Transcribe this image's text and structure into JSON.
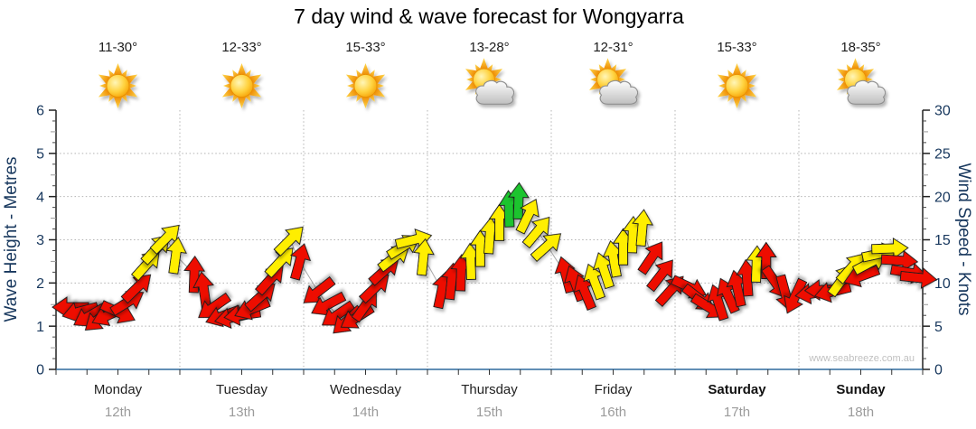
{
  "page": {
    "title": "7 day wind & wave forecast for Wongyarra"
  },
  "chart_data": {
    "type": "scatter",
    "title": "7 day wind & wave forecast for Wongyarra",
    "watermark": "www.seabreeze.com.au",
    "left_axis": {
      "label": "Wave Height - Metres",
      "min": 0,
      "max": 6,
      "major_ticks": [
        0,
        1,
        2,
        3,
        4,
        5,
        6
      ],
      "minor_step": 0.25
    },
    "right_axis": {
      "label": "Wind Speed - Knots",
      "min": 0,
      "max": 30,
      "major_ticks": [
        0,
        5,
        10,
        15,
        20,
        25,
        30
      ],
      "minor_step": 1.25
    },
    "x_axis": {
      "minor_ticks_per_day": 4,
      "grid": "day-boundaries"
    },
    "legend_note": "arrow color indicates wind strength; arrow rotation indicates wind direction",
    "colors": {
      "red": "#ee1100",
      "yellow": "#ffee00",
      "green": "#1dc42e",
      "outline": "#1a1a1a",
      "grid": "#b3b3b3",
      "axis": "#222222",
      "baseline": "#2f6a9e",
      "tick_label": "#17375d",
      "trace": "#a9a9a9"
    },
    "days": [
      {
        "name": "Monday",
        "date": "12th",
        "temps": "11-30°",
        "icon": "sunny",
        "weekend": false,
        "wind_knots": [
          7.2,
          6.7,
          6.2,
          5.9,
          6.3,
          6.6,
          7.8,
          9.5,
          12.2,
          14.0,
          15.2,
          13.2
        ],
        "wind_dir_deg": [
          270,
          255,
          240,
          230,
          245,
          115,
          58,
          46,
          42,
          43,
          45,
          8
        ],
        "wind_colors": [
          "red",
          "red",
          "red",
          "red",
          "red",
          "red",
          "red",
          "red",
          "yellow",
          "yellow",
          "yellow",
          "yellow"
        ]
      },
      {
        "name": "Tuesday",
        "date": "13th",
        "temps": "12-33°",
        "icon": "sunny",
        "weekend": false,
        "wind_knots": [
          11.0,
          9.2,
          7.2,
          6.2,
          6.0,
          6.3,
          7.0,
          8.5,
          10.5,
          12.5,
          15.0,
          12.5
        ],
        "wind_dir_deg": [
          2,
          352,
          235,
          250,
          258,
          262,
          248,
          48,
          42,
          43,
          45,
          15
        ],
        "wind_colors": [
          "red",
          "red",
          "red",
          "red",
          "red",
          "red",
          "red",
          "red",
          "red",
          "yellow",
          "yellow",
          "red"
        ]
      },
      {
        "name": "Wednesday",
        "date": "14th",
        "temps": "15-33°",
        "icon": "sunny",
        "weekend": false,
        "wind_knots": [
          9.0,
          7.5,
          6.3,
          5.6,
          6.0,
          7.5,
          9.5,
          11.5,
          13.0,
          14.3,
          15.0,
          13.0
        ],
        "wind_dir_deg": [
          232,
          242,
          236,
          228,
          238,
          35,
          46,
          48,
          52,
          58,
          76,
          6
        ],
        "wind_colors": [
          "red",
          "red",
          "red",
          "red",
          "red",
          "red",
          "red",
          "red",
          "yellow",
          "yellow",
          "yellow",
          "yellow"
        ]
      },
      {
        "name": "Thursday",
        "date": "15th",
        "temps": "13-28°",
        "icon": "partly",
        "weekend": false,
        "wind_knots": [
          9.2,
          10.2,
          11.2,
          12.5,
          14.0,
          15.5,
          17.0,
          18.6,
          19.5,
          17.8,
          16.0,
          14.3
        ],
        "wind_dir_deg": [
          12,
          6,
          2,
          358,
          0,
          4,
          0,
          358,
          2,
          26,
          40,
          48
        ],
        "wind_colors": [
          "red",
          "red",
          "red",
          "yellow",
          "yellow",
          "yellow",
          "yellow",
          "green",
          "green",
          "yellow",
          "yellow",
          "yellow"
        ]
      },
      {
        "name": "Friday",
        "date": "16th",
        "temps": "12-31°",
        "icon": "partly",
        "weekend": false,
        "wind_knots": [
          11.0,
          10.0,
          9.0,
          10.2,
          11.5,
          12.8,
          14.2,
          15.6,
          16.4,
          13.0,
          11.0,
          9.2
        ],
        "wind_dir_deg": [
          345,
          340,
          338,
          340,
          342,
          350,
          0,
          2,
          5,
          34,
          38,
          42
        ],
        "wind_colors": [
          "red",
          "red",
          "red",
          "yellow",
          "yellow",
          "yellow",
          "yellow",
          "yellow",
          "yellow",
          "red",
          "red",
          "red"
        ]
      },
      {
        "name": "Saturday",
        "date": "17th",
        "temps": "15-33°",
        "icon": "sunny",
        "weekend": true,
        "wind_knots": [
          9.5,
          8.2,
          7.2,
          7.8,
          8.6,
          9.4,
          10.6,
          12.2,
          12.6,
          10.0,
          8.8,
          8.4
        ],
        "wind_dir_deg": [
          115,
          128,
          122,
          342,
          336,
          348,
          356,
          2,
          0,
          145,
          165,
          205
        ],
        "wind_colors": [
          "red",
          "red",
          "red",
          "red",
          "red",
          "red",
          "red",
          "yellow",
          "red",
          "red",
          "red",
          "red"
        ]
      },
      {
        "name": "Sunday",
        "date": "18th",
        "temps": "18-35°",
        "icon": "partly",
        "weekend": true,
        "wind_knots": [
          8.8,
          9.2,
          9.0,
          10.4,
          11.8,
          10.8,
          12.4,
          13.4,
          14.0,
          12.6,
          11.2,
          10.6
        ],
        "wind_dir_deg": [
          262,
          268,
          256,
          36,
          42,
          250,
          62,
          78,
          88,
          94,
          100,
          96
        ],
        "wind_colors": [
          "red",
          "red",
          "red",
          "yellow",
          "yellow",
          "red",
          "yellow",
          "yellow",
          "yellow",
          "red",
          "red",
          "red"
        ]
      }
    ]
  }
}
